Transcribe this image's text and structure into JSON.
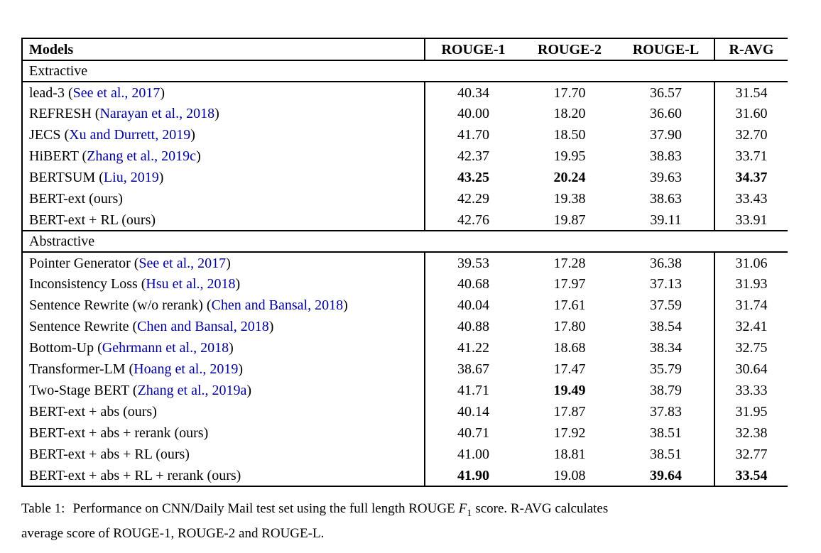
{
  "colors": {
    "citation": "#000099",
    "text": "#000000",
    "rule": "#000000",
    "background": "#ffffff"
  },
  "table": {
    "header": {
      "models": "Models",
      "cols": [
        "ROUGE-1",
        "ROUGE-2",
        "ROUGE-L",
        "R-AVG"
      ]
    },
    "sections": [
      {
        "label": "Extractive",
        "rows": [
          {
            "model": "lead-3",
            "cite": "See et al., 2017",
            "values": [
              "40.34",
              "17.70",
              "36.57",
              "31.54"
            ],
            "bold": [
              false,
              false,
              false,
              false
            ]
          },
          {
            "model": "REFRESH",
            "cite": "Narayan et al., 2018",
            "values": [
              "40.00",
              "18.20",
              "36.60",
              "31.60"
            ],
            "bold": [
              false,
              false,
              false,
              false
            ]
          },
          {
            "model": "JECS",
            "cite": "Xu and Durrett, 2019",
            "values": [
              "41.70",
              "18.50",
              "37.90",
              "32.70"
            ],
            "bold": [
              false,
              false,
              false,
              false
            ]
          },
          {
            "model": "HiBERT",
            "cite": "Zhang et al., 2019c",
            "values": [
              "42.37",
              "19.95",
              "38.83",
              "33.71"
            ],
            "bold": [
              false,
              false,
              false,
              false
            ]
          },
          {
            "model": "BERTSUM",
            "cite": "Liu, 2019",
            "values": [
              "43.25",
              "20.24",
              "39.63",
              "34.37"
            ],
            "bold": [
              true,
              true,
              false,
              true
            ]
          },
          {
            "model": "BERT-ext (ours)",
            "cite": null,
            "values": [
              "42.29",
              "19.38",
              "38.63",
              "33.43"
            ],
            "bold": [
              false,
              false,
              false,
              false
            ]
          },
          {
            "model": "BERT-ext + RL (ours)",
            "cite": null,
            "values": [
              "42.76",
              "19.87",
              "39.11",
              "33.91"
            ],
            "bold": [
              false,
              false,
              false,
              false
            ]
          }
        ]
      },
      {
        "label": "Abstractive",
        "rows": [
          {
            "model": "Pointer Generator",
            "cite": "See et al., 2017",
            "values": [
              "39.53",
              "17.28",
              "36.38",
              "31.06"
            ],
            "bold": [
              false,
              false,
              false,
              false
            ]
          },
          {
            "model": "Inconsistency Loss",
            "cite": "Hsu et al., 2018",
            "values": [
              "40.68",
              "17.97",
              "37.13",
              "31.93"
            ],
            "bold": [
              false,
              false,
              false,
              false
            ]
          },
          {
            "model": "Sentence Rewrite (w/o rerank)",
            "cite": "Chen and Bansal, 2018",
            "values": [
              "40.04",
              "17.61",
              "37.59",
              "31.74"
            ],
            "bold": [
              false,
              false,
              false,
              false
            ]
          },
          {
            "model": "Sentence Rewrite",
            "cite": "Chen and Bansal, 2018",
            "values": [
              "40.88",
              "17.80",
              "38.54",
              "32.41"
            ],
            "bold": [
              false,
              false,
              false,
              false
            ]
          },
          {
            "model": "Bottom-Up",
            "cite": "Gehrmann et al., 2018",
            "values": [
              "41.22",
              "18.68",
              "38.34",
              "32.75"
            ],
            "bold": [
              false,
              false,
              false,
              false
            ]
          },
          {
            "model": "Transformer-LM",
            "cite": "Hoang et al., 2019",
            "values": [
              "38.67",
              "17.47",
              "35.79",
              "30.64"
            ],
            "bold": [
              false,
              false,
              false,
              false
            ]
          },
          {
            "model": "Two-Stage BERT",
            "cite": "Zhang et al., 2019a",
            "values": [
              "41.71",
              "19.49",
              "38.79",
              "33.33"
            ],
            "bold": [
              false,
              true,
              false,
              false
            ]
          },
          {
            "model": "BERT-ext + abs (ours)",
            "cite": null,
            "values": [
              "40.14",
              "17.87",
              "37.83",
              "31.95"
            ],
            "bold": [
              false,
              false,
              false,
              false
            ]
          },
          {
            "model": "BERT-ext + abs + rerank (ours)",
            "cite": null,
            "values": [
              "40.71",
              "17.92",
              "38.51",
              "32.38"
            ],
            "bold": [
              false,
              false,
              false,
              false
            ]
          },
          {
            "model": "BERT-ext + abs + RL (ours)",
            "cite": null,
            "values": [
              "41.00",
              "18.81",
              "38.51",
              "32.77"
            ],
            "bold": [
              false,
              false,
              false,
              false
            ]
          },
          {
            "model": "BERT-ext + abs + RL + rerank (ours)",
            "cite": null,
            "values": [
              "41.90",
              "19.08",
              "39.64",
              "33.54"
            ],
            "bold": [
              true,
              false,
              true,
              true
            ]
          }
        ]
      }
    ]
  },
  "caption": {
    "label": "Table 1:",
    "before_f1": "Performance on CNN/Daily Mail test set using the full length ROUGE",
    "f1_var": "F",
    "f1_sub": "1",
    "after_f1": "score.  R-AVG calculates",
    "line2": "average score of ROUGE-1, ROUGE-2 and ROUGE-L."
  }
}
